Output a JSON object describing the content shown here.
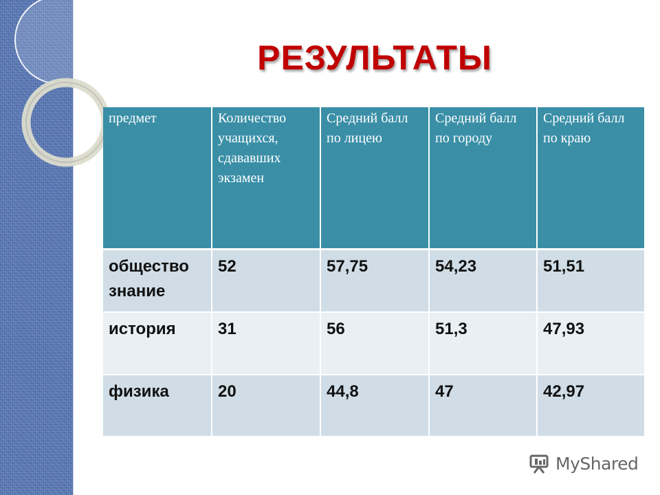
{
  "slide": {
    "title": "РЕЗУЛЬТАТЫ",
    "title_color": "#c00000",
    "accent_color": "#3a8fa7"
  },
  "table": {
    "headers": [
      "предмет",
      "Количество учащихся, сдававших экзамен",
      "Средний балл по лицею",
      "Средний балл по городу",
      "Средний балл по краю"
    ],
    "rows": [
      [
        "общество знание",
        "52",
        "57,75",
        "54,23",
        "51,51"
      ],
      [
        "история",
        "31",
        "56",
        "51,3",
        "47,93"
      ],
      [
        "физика",
        "20",
        "44,8",
        "47",
        "42,97"
      ]
    ]
  },
  "watermark": {
    "text": "MyShared",
    "icon": "myshared-logo-icon"
  }
}
